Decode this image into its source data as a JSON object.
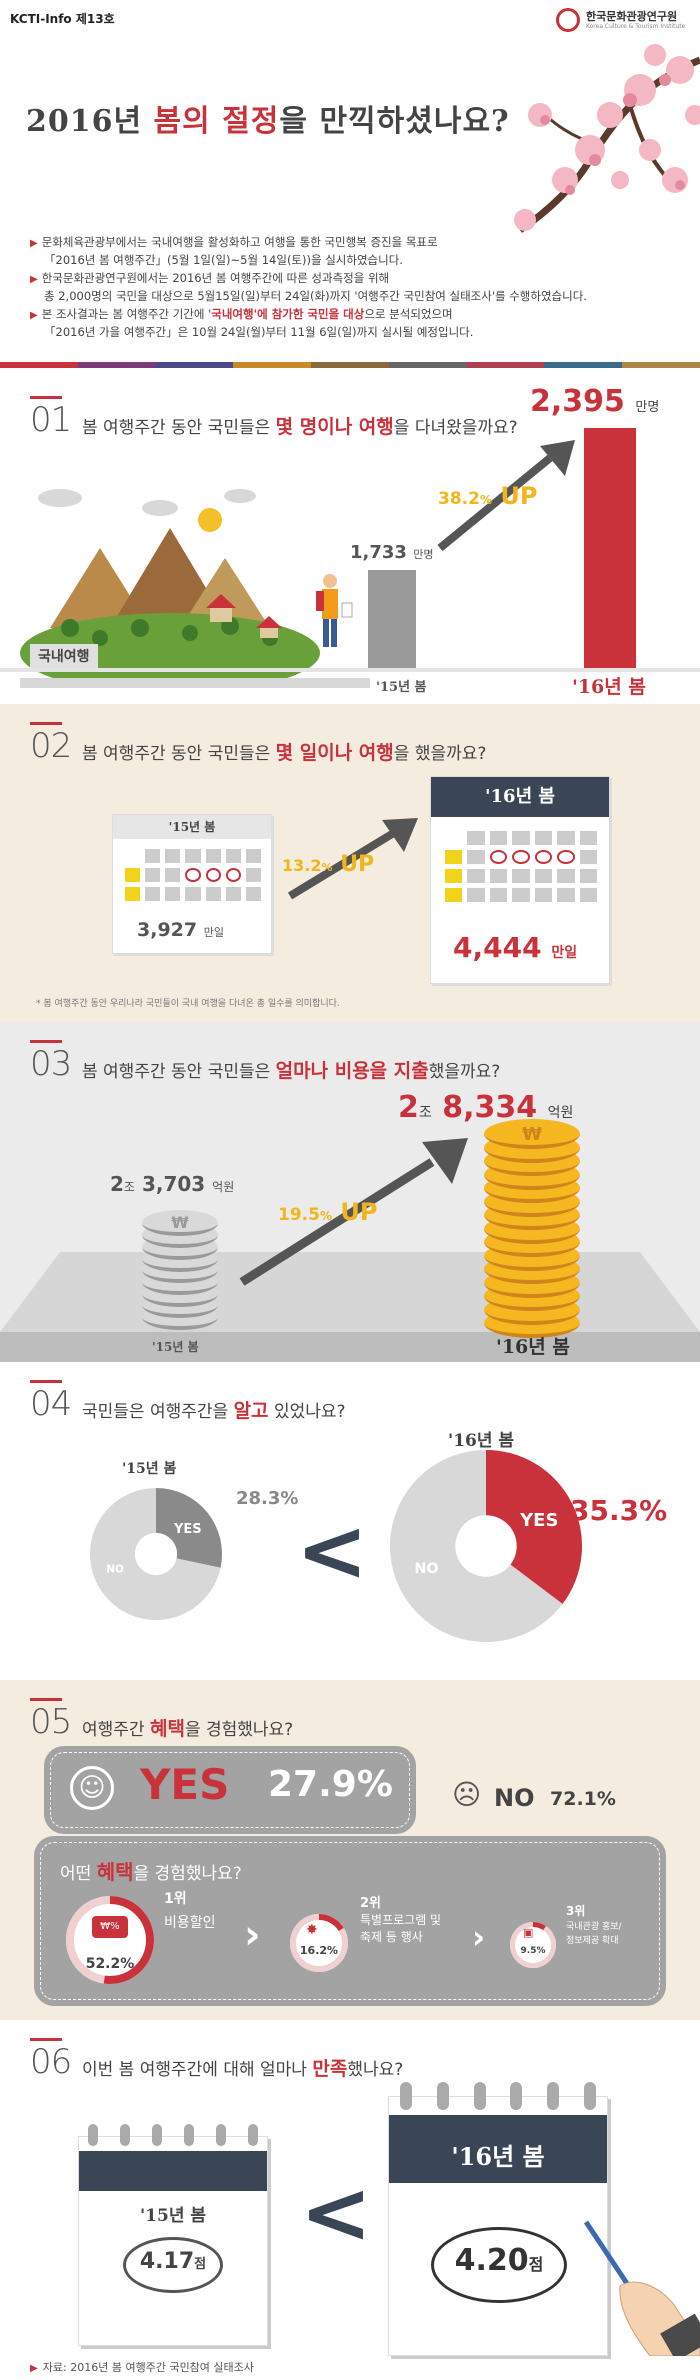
{
  "header": {
    "issue": "KCTI-Info 제13호",
    "institute_name": "한국문화관광연구원",
    "institute_en": "Korea Culture & Tourism Institute",
    "title_pre": "2016년 ",
    "title_hl": "봄의 절정",
    "title_post": "을 만끽하셨나요?",
    "intro": [
      {
        "line1": "문화체육관광부에서는 국내여행을 활성화하고 여행을 통한 국민행복 증진을 목표로",
        "line2": "「2016년 봄 여행주간」(5월 1일(일)~5월 14일(토))을 실시하였습니다."
      },
      {
        "line1": "한국문화관광연구원에서는 2016년 봄 여행주간에 따른 성과측정을 위해",
        "line2": "총 2,000명의 국민을 대상으로 5월15일(일)부터 24일(화)까지 '여행주간 국민참여 실태조사'를 수행하였습니다."
      },
      {
        "line1_pre": "본 조사결과는 봄 여행주간 기간에 '",
        "line1_em": "국내여행'에 참가한 국민을 대상",
        "line1_post": "으로 분석되었으며",
        "line2": "「2016년 가을 여행주간」은 10월 24일(월)부터 11월 6일(일)까지 실시될 예정입니다."
      }
    ],
    "stripe_colors": [
      "#c9323a",
      "#7a3b7a",
      "#4a4a8a",
      "#c98a2a",
      "#8a6a3a",
      "#666",
      "#b04050",
      "#3a6a8a",
      "#aa8844"
    ]
  },
  "s1": {
    "num": "01",
    "q_pre": "봄 여행주간 동안 국민들은 ",
    "q_em": "몇 명이나 여행",
    "q_post": "을 다녀왔을까요?",
    "label_domestic": "국내여행",
    "val_15": "1,733",
    "val_15_unit": "만명",
    "val_16": "2,395",
    "val_16_unit": "만명",
    "pct": "38.2",
    "pct_unit": "%",
    "up": "UP",
    "year_15": "'15년 봄",
    "year_16": "'16년 봄"
  },
  "s2": {
    "num": "02",
    "q_pre": "봄 여행주간 동안 국민들은 ",
    "q_em": "몇 일이나 여행",
    "q_post": "을 했을까요?",
    "year_15": "'15년 봄",
    "year_16": "'16년 봄",
    "val_15": "3,927",
    "val_15_unit": "만일",
    "val_16": "4,444",
    "val_16_unit": "만일",
    "pct": "13.2",
    "pct_unit": "%",
    "up": "UP",
    "note": "* 봄 여행주간 동안 우리나라 국민들이 국내 여행을 다녀온 총 일수를 의미합니다."
  },
  "s3": {
    "num": "03",
    "q_pre": "봄 여행주간 동안 국민들은 ",
    "q_em": "얼마나 비용을 지출",
    "q_post": "했을까요?",
    "val_15_a": "2",
    "val_15_jo": "조",
    "val_15_b": "3,703",
    "val_15_unit": "억원",
    "val_16_a": "2",
    "val_16_jo": "조",
    "val_16_b": "8,334",
    "val_16_unit": "억원",
    "pct": "19.5",
    "pct_unit": "%",
    "up": "UP",
    "year_15": "'15년 봄",
    "year_16": "'16년 봄",
    "coin_symbol": "₩"
  },
  "s4": {
    "num": "04",
    "q_pre": "국민들은 여행주간을 ",
    "q_em": "알고",
    "q_post": " 있었나요?",
    "year_15": "'15년 봄",
    "year_16": "'16년 봄",
    "yes_15_pct": 28.3,
    "yes_15_label": "28.3%",
    "yes_16_pct": 35.3,
    "yes_16_label": "35.3%",
    "yes": "YES",
    "no": "NO",
    "compare_symbol": "<"
  },
  "s5": {
    "num": "05",
    "q_pre": "여행주간 ",
    "q_em": "혜택",
    "q_post": "을 경험했나요?",
    "yes": "YES",
    "yes_pct": "27.9%",
    "no": "NO",
    "no_pct": "72.1%",
    "sub_q_pre": "어떤 ",
    "sub_q_em": "혜택",
    "sub_q_post": "을 경험했나요?",
    "ranks": [
      {
        "rank": "1위",
        "label": "비용할인",
        "pct": "52.2%",
        "pct_value": 52.2
      },
      {
        "rank": "2위",
        "label_1": "특별프로그램 및",
        "label_2": "축제 등 행사",
        "pct": "16.2%",
        "pct_value": 16.2
      },
      {
        "rank": "3위",
        "label_1": "국내관광 홍보/",
        "label_2": "정보제공 확대",
        "pct": "9.5%",
        "pct_value": 9.5
      }
    ]
  },
  "s6": {
    "num": "06",
    "q_pre": "이번 봄 여행주간에 대해 얼마나 ",
    "q_em": "만족",
    "q_post": "했나요?",
    "year_15": "'15년 봄",
    "year_16": "'16년 봄",
    "val_15": "4.17",
    "val_16": "4.20",
    "unit": "점",
    "compare_symbol": "<",
    "source": "자료: 2016년 봄 여행주간 국민참여 실태조사"
  }
}
